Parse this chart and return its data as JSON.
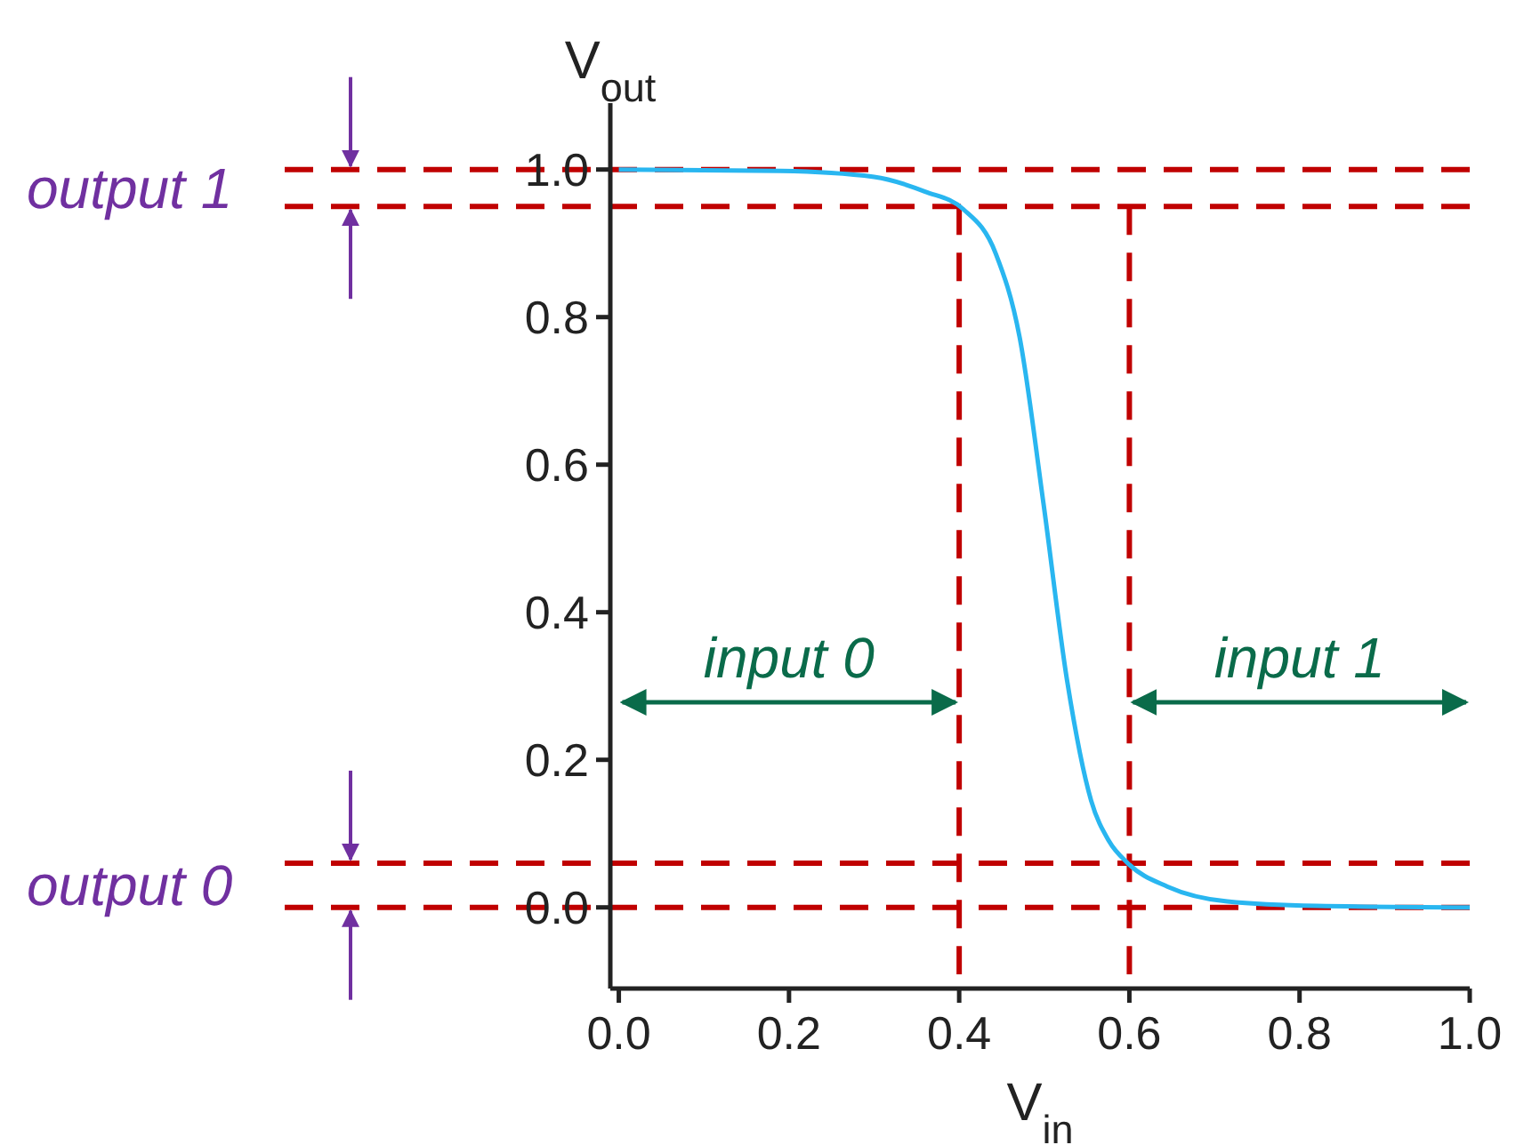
{
  "chart_data": {
    "type": "line",
    "xlabel": "V$_{in}$",
    "ylabel": "V$_{out}$",
    "xlim": [
      -0.01,
      1.0
    ],
    "ylim": [
      -0.11,
      1.09
    ],
    "xticks": [
      {
        "value": 0,
        "label": "0.0"
      },
      {
        "value": 0.2,
        "label": "0.2"
      },
      {
        "value": 0.4,
        "label": "0.4"
      },
      {
        "value": 0.6,
        "label": "0.6"
      },
      {
        "value": 0.8,
        "label": "0.8"
      },
      {
        "value": 1.0,
        "label": "1.0"
      }
    ],
    "yticks": [
      {
        "value": 0,
        "label": "0.0"
      },
      {
        "value": 0.2,
        "label": "0.2"
      },
      {
        "value": 0.4,
        "label": "0.4"
      },
      {
        "value": 0.6,
        "label": "0.6"
      },
      {
        "value": 0.8,
        "label": "0.8"
      },
      {
        "value": 1.0,
        "label": "1.0"
      }
    ],
    "series": [
      {
        "color": "#29b6f0",
        "x": [
          0,
          0.19,
          0.3,
          0.36,
          0.405,
          0.443,
          0.471,
          0.499,
          0.527,
          0.555,
          0.576,
          0.598,
          0.645,
          0.715,
          0.82,
          1.0
        ],
        "values": [
          1.0,
          0.998,
          0.99,
          0.97,
          0.946,
          0.886,
          0.773,
          0.548,
          0.306,
          0.145,
          0.09,
          0.06,
          0.028,
          0.008,
          0.002,
          0.0
        ]
      }
    ],
    "ref_lines": [
      {
        "axis": "y",
        "value": 1.0,
        "color": "#c00000",
        "line_style": "dashed"
      },
      {
        "axis": "y",
        "value": 0.95,
        "color": "#c00000",
        "line_style": "dashed"
      },
      {
        "axis": "y",
        "value": 0.06,
        "color": "#c00000",
        "line_style": "dashed"
      },
      {
        "axis": "y",
        "value": 0.0,
        "color": "#c00000",
        "line_style": "dashed"
      },
      {
        "axis": "x",
        "value": 0.4,
        "color": "#c00000",
        "line_style": "dashed"
      },
      {
        "axis": "x",
        "value": 0.6,
        "color": "#c00000",
        "line_style": "dashed"
      }
    ],
    "annotations": [
      "output 1",
      "output 0",
      "input 0",
      "input 1"
    ]
  }
}
